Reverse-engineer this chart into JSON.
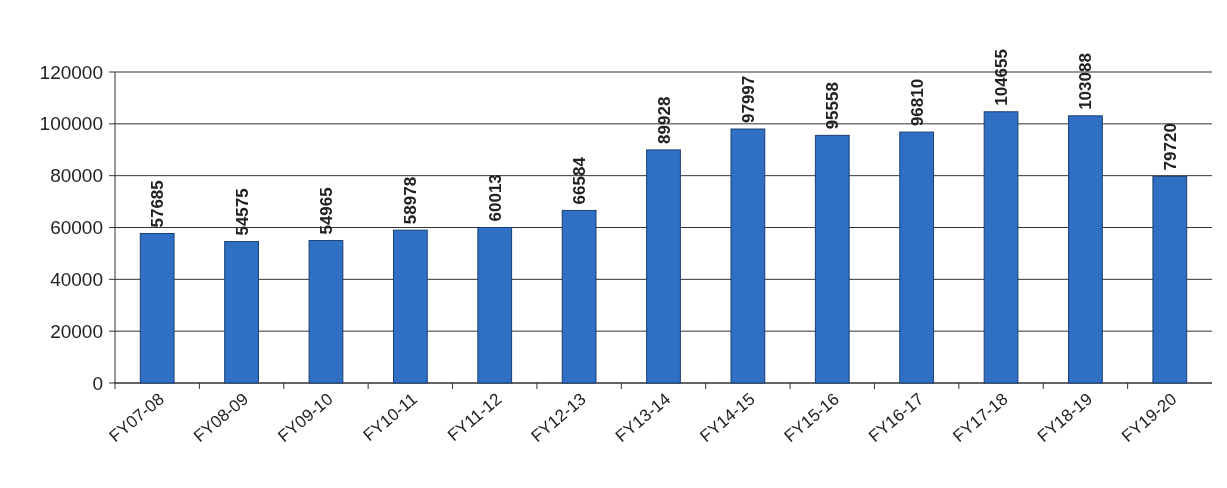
{
  "chart_data": {
    "type": "bar",
    "categories": [
      "FY07-08",
      "FY08-09",
      "FY09-10",
      "FY10-11",
      "FY11-12",
      "FY12-13",
      "FY13-14",
      "FY14-15",
      "FY15-16",
      "FY16-17",
      "FY17-18",
      "FY18-19",
      "FY19-20"
    ],
    "values": [
      57685,
      54575,
      54965,
      58978,
      60013,
      66584,
      89928,
      97997,
      95558,
      96810,
      104655,
      103088,
      79720
    ],
    "color": "#2f6fc4",
    "ylim": [
      0,
      120000
    ],
    "yticks": [
      0,
      20000,
      40000,
      60000,
      80000,
      100000,
      120000
    ],
    "grid": "y",
    "data_labels": true
  }
}
